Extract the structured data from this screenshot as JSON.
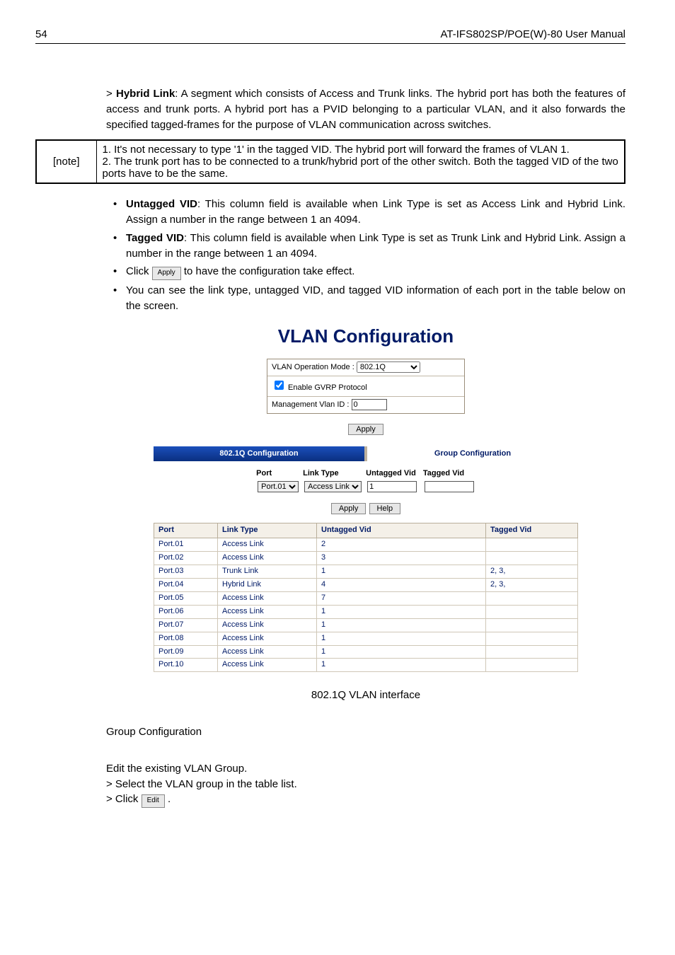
{
  "header": {
    "page_number": "54",
    "manual_title": "AT-IFS802SP/POE(W)-80 User Manual"
  },
  "hybrid_link": {
    "label": "Hybrid Link",
    "text": ": A segment which consists of Access and Trunk links. The hybrid port has both the features of access and trunk ports. A hybrid port has a PVID belonging to a particular VLAN, and it also forwards the specified tagged-frames for the purpose of VLAN communication across switches."
  },
  "note": {
    "label": "[note]",
    "line1": "1.  It's not necessary to type '1' in the tagged VID. The hybrid port will forward the frames of VLAN 1.",
    "line2": "2.  The trunk port has to be connected to a trunk/hybrid port of the other switch. Both the tagged VID of the two ports have to be the same."
  },
  "bullets": {
    "untagged_label": "Untagged VID",
    "untagged_text": ": This column field is available when Link Type is set as Access Link and Hybrid Link. Assign a number in the range between 1 an 4094.",
    "tagged_label": "Tagged VID",
    "tagged_text": ": This column field is available when Link Type is set as Trunk Link and Hybrid Link. Assign a number in the range between 1 an 4094.",
    "click_prefix": "Click ",
    "apply_btn": "Apply",
    "click_suffix": " to have the configuration take effect.",
    "final": "You can see the link type, untagged VID, and tagged VID information of each port in the table below on the screen."
  },
  "vlan_ui": {
    "title": "VLAN Configuration",
    "mode_label": "VLAN Operation Mode : ",
    "mode_value": "802.1Q",
    "gvrp_label": " Enable GVRP Protocol",
    "mgmt_label": "Management Vlan ID : ",
    "mgmt_value": "0",
    "apply_btn": "Apply",
    "help_btn": "Help",
    "tab_active": "802.1Q Configuration",
    "tab_inactive": "Group Configuration",
    "config_headers": {
      "port": "Port",
      "link": "Link Type",
      "uv": "Untagged Vid",
      "tv": "Tagged Vid"
    },
    "config_row": {
      "port": "Port.01",
      "link": "Access Link",
      "uv": "1",
      "tv": ""
    },
    "table_headers": {
      "port": "Port",
      "link": "Link Type",
      "uv": "Untagged Vid",
      "tv": "Tagged Vid"
    },
    "rows": [
      {
        "port": "Port.01",
        "link": "Access Link",
        "uv": "2",
        "tv": ""
      },
      {
        "port": "Port.02",
        "link": "Access Link",
        "uv": "3",
        "tv": ""
      },
      {
        "port": "Port.03",
        "link": "Trunk Link",
        "uv": "1",
        "tv": "2, 3,"
      },
      {
        "port": "Port.04",
        "link": "Hybrid Link",
        "uv": "4",
        "tv": "2, 3,"
      },
      {
        "port": "Port.05",
        "link": "Access Link",
        "uv": "7",
        "tv": ""
      },
      {
        "port": "Port.06",
        "link": "Access Link",
        "uv": "1",
        "tv": ""
      },
      {
        "port": "Port.07",
        "link": "Access Link",
        "uv": "1",
        "tv": ""
      },
      {
        "port": "Port.08",
        "link": "Access Link",
        "uv": "1",
        "tv": ""
      },
      {
        "port": "Port.09",
        "link": "Access Link",
        "uv": "1",
        "tv": ""
      },
      {
        "port": "Port.10",
        "link": "Access Link",
        "uv": "1",
        "tv": ""
      }
    ]
  },
  "caption": "802.1Q VLAN interface",
  "group_config": {
    "heading": "Group Configuration",
    "line1": "Edit the existing VLAN Group.",
    "line2": "> Select the VLAN group in the table list.",
    "click_prefix": "> Click ",
    "edit_btn": "Edit",
    "click_suffix": " ."
  }
}
